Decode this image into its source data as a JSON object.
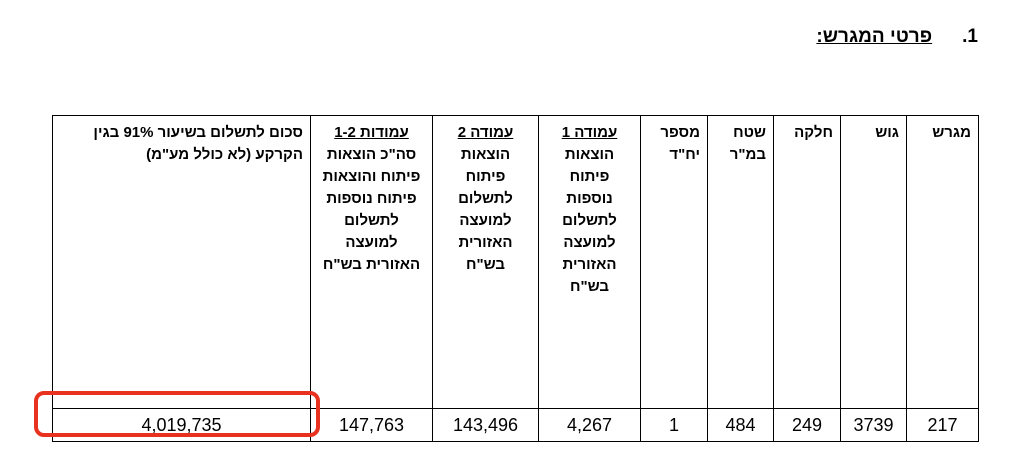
{
  "section": {
    "number": "1.",
    "title": "פרטי המגרש:"
  },
  "table": {
    "headers": [
      {
        "title": "מגרש"
      },
      {
        "title": "גוש"
      },
      {
        "title": "חלקה"
      },
      {
        "title": "שטח במ\"ר"
      },
      {
        "title": "מספר יח\"ד"
      },
      {
        "title": "עמודה 1",
        "text": "הוצאות פיתוח נוספות לתשלום למועצה האזורית בש\"ח"
      },
      {
        "title": "עמודה 2",
        "text": "הוצאות פיתוח לתשלום למועצה האזורית בש\"ח"
      },
      {
        "title": "עמודות 1-2",
        "text": "סה\"כ הוצאות פיתוח והוצאות פיתוח נוספות לתשלום למועצה האזורית בש\"ח"
      },
      {
        "title": "סכום לתשלום בשיעור 91% בגין הקרקע (לא כולל מע\"מ)"
      }
    ],
    "rows": [
      [
        "217",
        "3739",
        "249",
        "484",
        "1",
        "4,267",
        "143,496",
        "147,763",
        "4,019,735"
      ]
    ]
  }
}
